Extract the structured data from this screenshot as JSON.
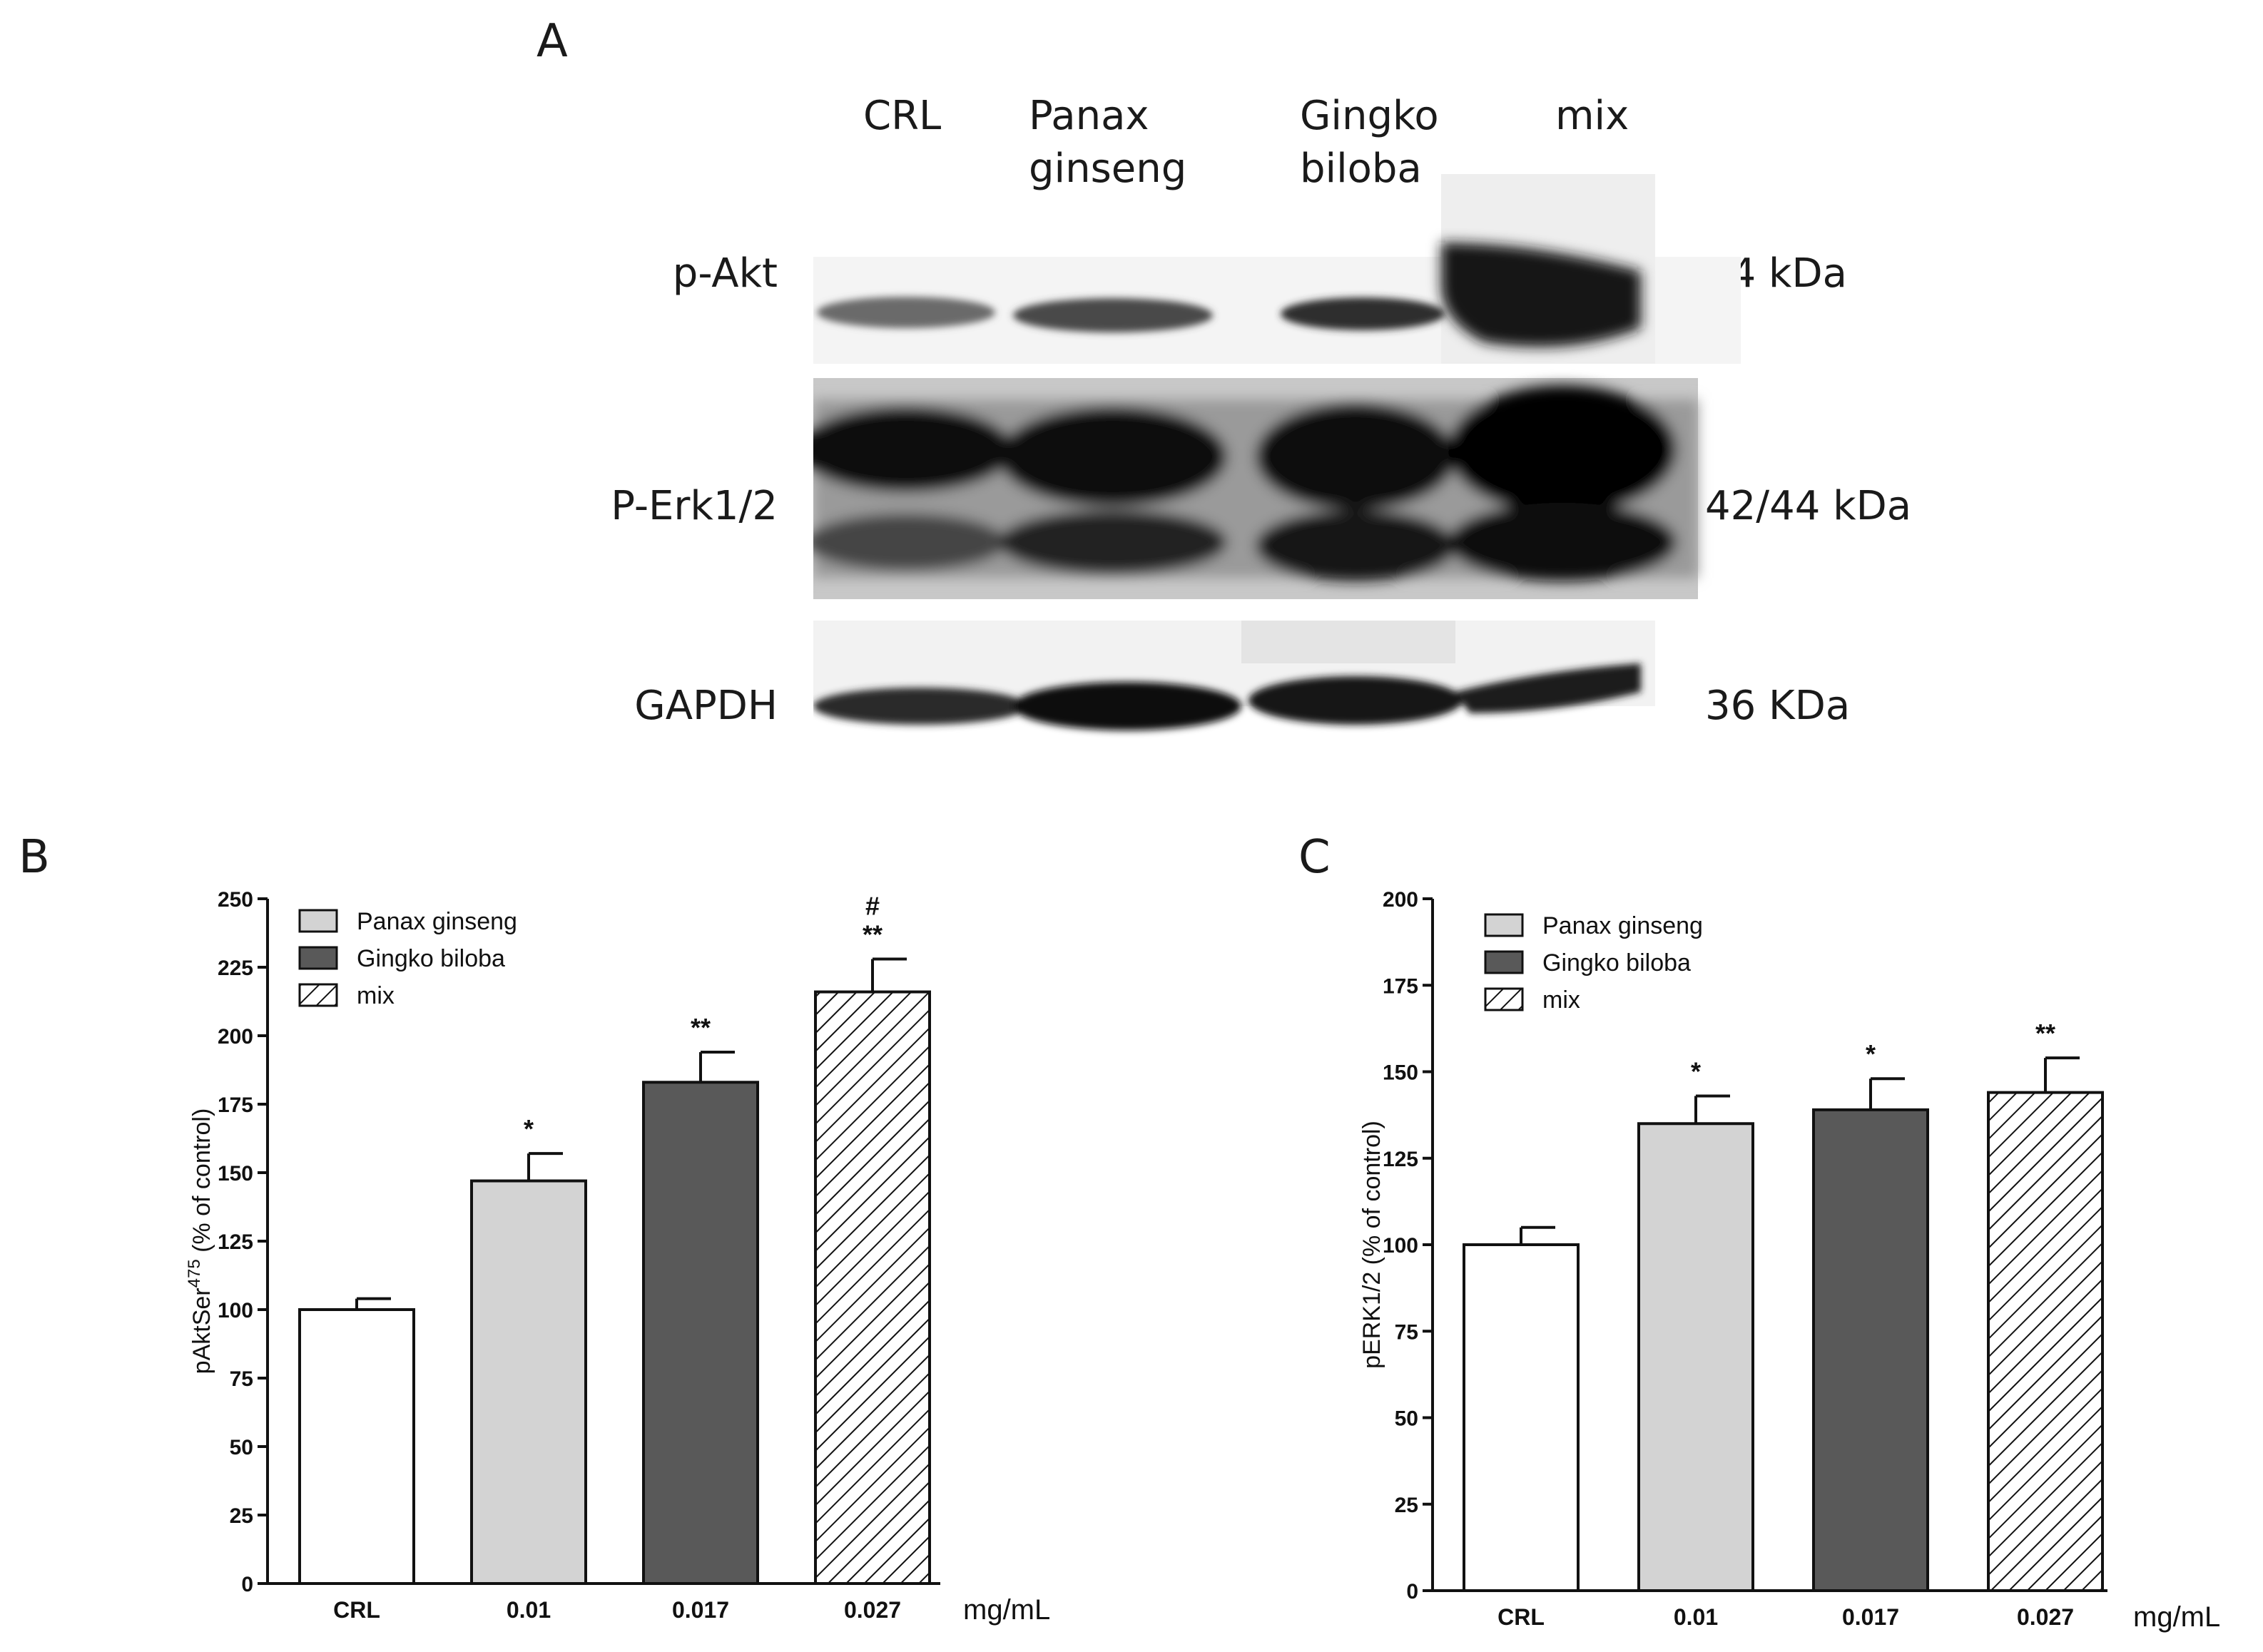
{
  "panels": {
    "a": "A",
    "b": "B",
    "c": "C"
  },
  "blot": {
    "lanes": [
      "CRL",
      "Panax\nginseng",
      "Gingko\nbiloba",
      "mix"
    ],
    "rows": [
      {
        "name": "p-Akt",
        "kda": "64 kDa"
      },
      {
        "name": "P-Erk1/2",
        "kda": "42/44 kDa"
      },
      {
        "name": "GAPDH",
        "kda": "36 KDa"
      }
    ]
  },
  "chart_data": [
    {
      "type": "bar",
      "categories": [
        "CRL",
        "0.01",
        "0.017",
        "0.027"
      ],
      "values": [
        100,
        147,
        183,
        216
      ],
      "errors": [
        4,
        10,
        11,
        12
      ],
      "significance": [
        "",
        "*",
        "**",
        "**"
      ],
      "significance2": [
        "",
        "",
        "",
        "#"
      ],
      "fills": [
        "white",
        "#d3d3d3",
        "#595959",
        "hatch"
      ],
      "ylabel_main": "pAktSer",
      "ylabel_sup": "475",
      "ylabel_rest": "  (% of control)",
      "yticks": [
        0,
        25,
        50,
        75,
        100,
        125,
        150,
        175,
        200,
        225,
        250
      ],
      "ylim": [
        0,
        250
      ],
      "unit": "mg/mL",
      "legend": [
        "Panax ginseng",
        "Gingko biloba",
        "mix"
      ],
      "legend_placement": "top-left"
    },
    {
      "type": "bar",
      "categories": [
        "CRL",
        "0.01",
        "0.017",
        "0.027"
      ],
      "values": [
        100,
        135,
        139,
        144
      ],
      "errors": [
        5,
        8,
        9,
        10
      ],
      "significance": [
        "",
        "*",
        "*",
        "**"
      ],
      "significance2": [
        "",
        "",
        "",
        ""
      ],
      "fills": [
        "white",
        "#d3d3d3",
        "#595959",
        "hatch"
      ],
      "ylabel_main": "pERK1/2 (% of control)",
      "ylabel_sup": "",
      "ylabel_rest": "",
      "yticks": [
        0,
        25,
        50,
        75,
        100,
        125,
        150,
        175,
        200
      ],
      "ylim": [
        0,
        200
      ],
      "unit": "mg/mL",
      "legend": [
        "Panax ginseng",
        "Gingko biloba",
        "mix"
      ],
      "legend_placement": "top-left"
    }
  ]
}
